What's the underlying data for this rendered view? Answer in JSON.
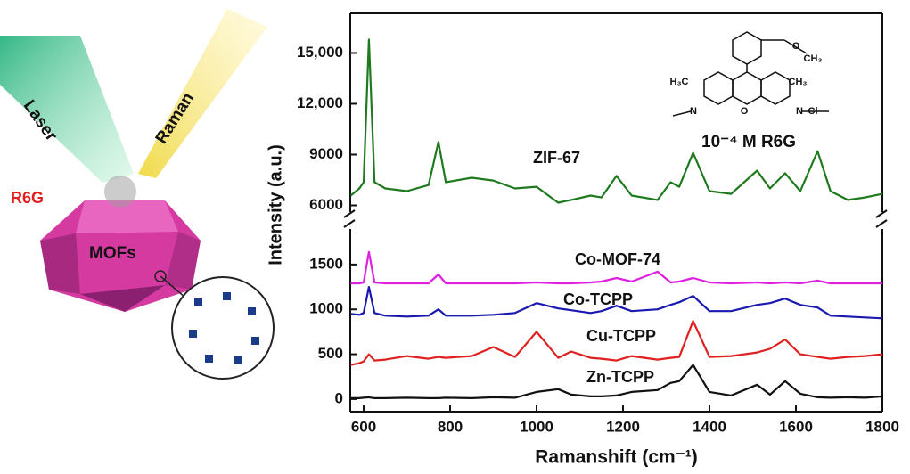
{
  "illustration": {
    "labels": [
      "Laser",
      "Raman",
      "R6G",
      "MOFs"
    ]
  },
  "molecule": {
    "labels": [
      "H₃C",
      "CH₃",
      "N",
      "O",
      "N",
      "Cl",
      "O",
      "CH₃"
    ],
    "caption": "10⁻⁴ M R6G"
  },
  "chart_data": {
    "type": "line",
    "xlabel": "Ramanshift (cm⁻¹)",
    "ylabel": "Intensity (a.u.)",
    "x": [
      570,
      590,
      600,
      612,
      625,
      650,
      700,
      750,
      773,
      790,
      850,
      900,
      950,
      1000,
      1050,
      1080,
      1125,
      1150,
      1185,
      1220,
      1280,
      1310,
      1330,
      1362,
      1400,
      1450,
      1510,
      1540,
      1575,
      1610,
      1650,
      1680,
      1720,
      1760,
      1800
    ],
    "xlim": [
      569,
      1800
    ],
    "xticks": [
      600,
      800,
      1000,
      1200,
      1400,
      1600,
      1800
    ],
    "ylim": [
      -140,
      1916
    ],
    "yticks": [
      0,
      500,
      1000,
      1500
    ],
    "y2lim": [
      5500,
      17340
    ],
    "y2ticks": [
      6000,
      9000,
      {
        "value": 12000,
        "label": "12,000"
      },
      {
        "value": 15000,
        "label": "15,000"
      }
    ],
    "series": [
      {
        "name": "ZIF-67",
        "color": "#1f7a1f",
        "axis": "y2",
        "values": [
          6580,
          7000,
          7370,
          15790,
          7370,
          7000,
          6840,
          7200,
          9740,
          7370,
          7630,
          7470,
          7000,
          7100,
          6160,
          6320,
          6580,
          6470,
          7740,
          6580,
          6320,
          7370,
          7100,
          9100,
          6840,
          6680,
          8050,
          7000,
          7900,
          6840,
          9200,
          6840,
          6320,
          6470,
          6680
        ]
      },
      {
        "name": "Co-MOF-74",
        "color": "#e020e0",
        "values": [
          1290,
          1290,
          1300,
          1640,
          1300,
          1290,
          1290,
          1290,
          1390,
          1290,
          1290,
          1290,
          1290,
          1300,
          1290,
          1290,
          1300,
          1310,
          1350,
          1310,
          1420,
          1300,
          1310,
          1350,
          1300,
          1290,
          1300,
          1290,
          1300,
          1290,
          1320,
          1290,
          1290,
          1290,
          1290
        ]
      },
      {
        "name": "Co-TCPP",
        "color": "#1a1ab0",
        "values": [
          950,
          940,
          960,
          1250,
          960,
          930,
          920,
          930,
          1000,
          930,
          930,
          940,
          960,
          1070,
          1010,
          990,
          960,
          980,
          1040,
          980,
          1000,
          1050,
          1080,
          1150,
          980,
          980,
          1050,
          1070,
          1120,
          1050,
          1020,
          930,
          920,
          910,
          900
        ]
      },
      {
        "name": "Cu-TCPP",
        "color": "#e02020",
        "values": [
          380,
          400,
          420,
          500,
          430,
          440,
          480,
          450,
          470,
          460,
          480,
          580,
          470,
          750,
          460,
          530,
          460,
          450,
          430,
          480,
          440,
          460,
          470,
          870,
          470,
          480,
          520,
          560,
          665,
          500,
          470,
          450,
          470,
          480,
          500
        ]
      },
      {
        "name": "Zn-TCPP",
        "color": "#111111",
        "values": [
          10,
          10,
          15,
          20,
          10,
          10,
          15,
          10,
          10,
          15,
          10,
          20,
          15,
          80,
          110,
          50,
          30,
          30,
          40,
          80,
          100,
          180,
          200,
          380,
          80,
          40,
          160,
          50,
          200,
          60,
          20,
          15,
          20,
          15,
          30
        ]
      }
    ]
  }
}
